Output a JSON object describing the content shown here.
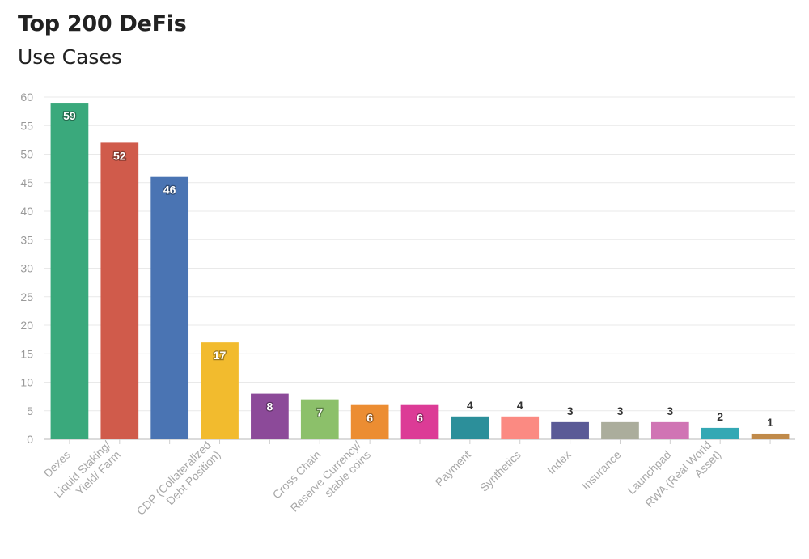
{
  "chart_data": {
    "type": "bar",
    "title": "Top 200 DeFis",
    "subtitle": "Use Cases",
    "ylim": [
      0,
      60
    ],
    "yticks": [
      0,
      5,
      10,
      15,
      20,
      25,
      30,
      35,
      40,
      45,
      50,
      55,
      60
    ],
    "grid": true,
    "categories": [
      {
        "label": "Dexes",
        "lines": [
          "Dexes"
        ],
        "value": 59,
        "color": "#3aa97c"
      },
      {
        "label": "Liquid Staking/ Yield/ Farm",
        "lines": [
          "Liquid Staking/",
          "Yield/ Farm"
        ],
        "value": 52,
        "color": "#d05b4b"
      },
      {
        "label": "",
        "lines": [],
        "value": 46,
        "color": "#4a74b3"
      },
      {
        "label": "CDP (Collateralized Debt Position)",
        "lines": [
          "CDP (Collateralized",
          "Debt Position)"
        ],
        "value": 17,
        "color": "#f2bb2e"
      },
      {
        "label": "",
        "lines": [],
        "value": 8,
        "color": "#8c4a99"
      },
      {
        "label": "Cross Chain",
        "lines": [
          "Cross Chain"
        ],
        "value": 7,
        "color": "#8cc06a"
      },
      {
        "label": "Reserve Currency/ stable coins",
        "lines": [
          "Reserve Currency/",
          "stable coins"
        ],
        "value": 6,
        "color": "#ec8d32"
      },
      {
        "label": "",
        "lines": [],
        "value": 6,
        "color": "#dc3b96"
      },
      {
        "label": "Payment",
        "lines": [
          "Payment"
        ],
        "value": 4,
        "color": "#2c8f9a"
      },
      {
        "label": "Synthetics",
        "lines": [
          "Synthetics"
        ],
        "value": 4,
        "color": "#fb8a82"
      },
      {
        "label": "Index",
        "lines": [
          "Index"
        ],
        "value": 3,
        "color": "#5a5a96"
      },
      {
        "label": "Insurance",
        "lines": [
          "Insurance"
        ],
        "value": 3,
        "color": "#abad9c"
      },
      {
        "label": "Launchpad",
        "lines": [
          "Launchpad"
        ],
        "value": 3,
        "color": "#d074b4"
      },
      {
        "label": "RWA (Real World Asset)",
        "lines": [
          "RWA (Real World",
          "Asset)"
        ],
        "value": 2,
        "color": "#34a8b4"
      },
      {
        "label": "",
        "lines": [],
        "value": 1,
        "color": "#c08a4a"
      }
    ]
  }
}
